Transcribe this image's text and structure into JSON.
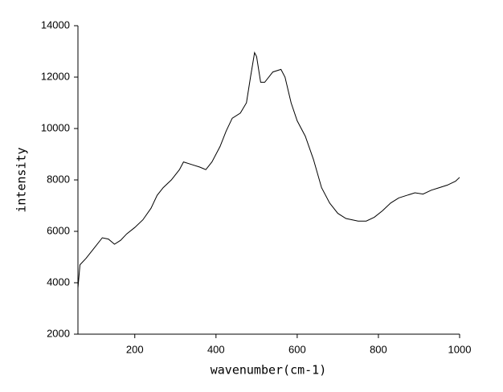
{
  "chart_data": {
    "type": "line",
    "x_label": "wavenumber(cm-1)",
    "y_label": "intensity",
    "color": "#000000",
    "x": [
      60,
      65,
      80,
      100,
      120,
      135,
      150,
      165,
      180,
      200,
      220,
      240,
      255,
      270,
      290,
      310,
      320,
      340,
      360,
      375,
      390,
      410,
      425,
      440,
      460,
      475,
      485,
      495,
      500,
      510,
      520,
      540,
      560,
      570,
      585,
      600,
      620,
      640,
      660,
      680,
      700,
      720,
      750,
      770,
      790,
      810,
      830,
      850,
      870,
      890,
      910,
      930,
      950,
      970,
      990,
      1000
    ],
    "values": [
      3800,
      4700,
      4950,
      5350,
      5750,
      5700,
      5500,
      5650,
      5900,
      6150,
      6450,
      6900,
      7400,
      7700,
      8000,
      8400,
      8700,
      8600,
      8500,
      8400,
      8700,
      9300,
      9900,
      10400,
      10600,
      11000,
      12000,
      12950,
      12800,
      11800,
      11800,
      12200,
      12300,
      12000,
      11000,
      10300,
      9700,
      8800,
      7700,
      7100,
      6700,
      6500,
      6400,
      6400,
      6550,
      6800,
      7100,
      7300,
      7400,
      7500,
      7450,
      7600,
      7700,
      7800,
      7950,
      8100
    ],
    "xlim": [
      60,
      1000
    ],
    "xticks": [
      200,
      400,
      600,
      800,
      1000
    ],
    "ylim": [
      2000,
      14000
    ],
    "yticks": [
      2000,
      4000,
      6000,
      8000,
      10000,
      12000,
      14000
    ]
  }
}
